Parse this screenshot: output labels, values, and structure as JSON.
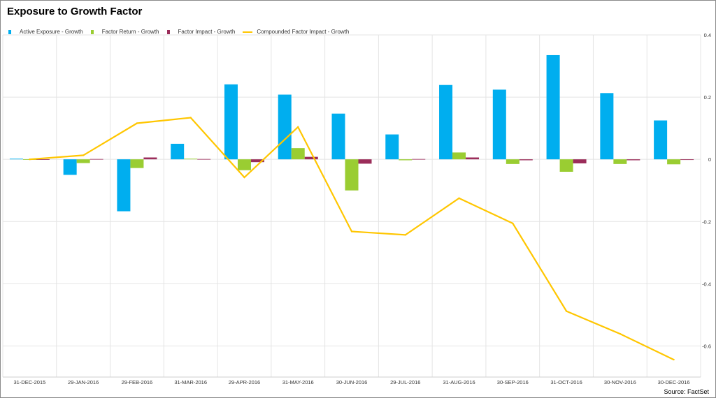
{
  "title": "Exposure to Growth Factor",
  "source": "Source: FactSet",
  "legend": [
    {
      "label": "Active Exposure - Growth",
      "color": "#00AEEF",
      "kind": "bar"
    },
    {
      "label": "Factor Return - Growth",
      "color": "#9ACD32",
      "kind": "bar"
    },
    {
      "label": "Factor Impact - Growth",
      "color": "#9B2D5A",
      "kind": "bar"
    },
    {
      "label": "Compounded Factor  Impact - Growth",
      "color": "#FFC600",
      "kind": "line"
    }
  ],
  "chart_data": {
    "type": "bar",
    "title": "Exposure to Growth Factor",
    "xlabel": "",
    "ylabel": "",
    "ylim": [
      -0.7,
      0.4
    ],
    "yticks": [
      0.4,
      0.2,
      0,
      -0.2,
      -0.4,
      -0.6
    ],
    "ytick_labels": [
      "0.4",
      "0.2",
      "0",
      "-0.2",
      "-0.4",
      "-0.6"
    ],
    "y_axis_position": "right",
    "grid": true,
    "legend_position": "top-left",
    "categories": [
      "31-DEC-2015",
      "29-JAN-2016",
      "29-FEB-2016",
      "31-MAR-2016",
      "29-APR-2016",
      "31-MAY-2016",
      "30-JUN-2016",
      "29-JUL-2016",
      "31-AUG-2016",
      "30-SEP-2016",
      "31-OCT-2016",
      "30-NOV-2016",
      "30-DEC-2016"
    ],
    "series": [
      {
        "name": "Active Exposure - Growth",
        "type": "bar",
        "color": "#00AEEF",
        "values": [
          0.002,
          -0.05,
          -0.167,
          0.05,
          0.241,
          0.208,
          0.147,
          0.08,
          0.239,
          0.224,
          0.335,
          0.213,
          0.125
        ]
      },
      {
        "name": "Factor Return - Growth",
        "type": "bar",
        "color": "#9ACD32",
        "values": [
          -0.001,
          -0.012,
          -0.028,
          0.002,
          -0.035,
          0.036,
          -0.1,
          -0.003,
          0.022,
          -0.015,
          -0.04,
          -0.015,
          -0.016
        ]
      },
      {
        "name": "Factor Impact - Growth",
        "type": "bar",
        "color": "#9B2D5A",
        "values": [
          -0.001,
          0.001,
          0.006,
          0.001,
          -0.009,
          0.008,
          -0.014,
          0.001,
          0.006,
          -0.003,
          -0.013,
          -0.003,
          -0.002
        ]
      },
      {
        "name": "Compounded Factor  Impact - Growth",
        "type": "line",
        "color": "#FFC600",
        "values": [
          0.0,
          0.013,
          0.116,
          0.134,
          -0.058,
          0.104,
          -0.232,
          -0.243,
          -0.125,
          -0.206,
          -0.488,
          -0.561,
          -0.644
        ]
      }
    ]
  }
}
